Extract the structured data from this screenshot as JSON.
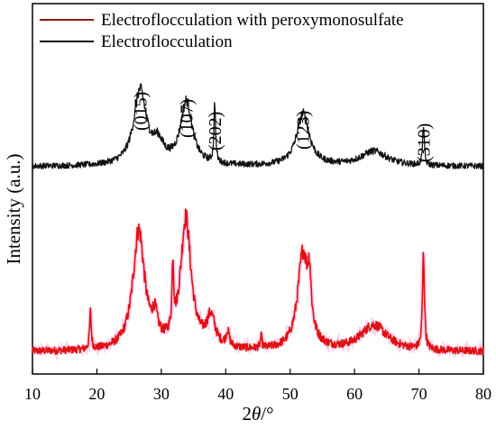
{
  "chart_data": {
    "type": "line",
    "title": "",
    "xlabel": "2θ/°",
    "xlabel_parts": {
      "prefix": "2",
      "symbol": "θ",
      "suffix": "/°"
    },
    "ylabel": "Intensity (a.u.)",
    "xlim": [
      10,
      80
    ],
    "xticks": [
      10,
      20,
      30,
      40,
      50,
      60,
      70,
      80
    ],
    "ylim": [
      0,
      100
    ],
    "y_scale": "arbitrary units, curves vertically offset",
    "grid": false,
    "legend": {
      "placement": "top-left",
      "frame": false
    },
    "peak_labels": [
      {
        "text": "(015)",
        "x": 26.7
      },
      {
        "text": "(107)",
        "x": 33.9
      },
      {
        "text": "(202)",
        "x": 38.3
      },
      {
        "text": "(123)",
        "x": 51.9
      },
      {
        "text": "(310)",
        "x": 70.7
      }
    ],
    "series": [
      {
        "name": "Electroflocculation with peroxymonosulfate",
        "color": "#e01010",
        "line_color": "#8b1a1a",
        "baseline": 6,
        "noise": 1.0,
        "peaks": [
          {
            "x": 19.0,
            "h": 10,
            "w": 0.15
          },
          {
            "x": 26.5,
            "h": 32,
            "w": 1.1
          },
          {
            "x": 29.0,
            "h": 6,
            "w": 0.5
          },
          {
            "x": 31.8,
            "h": 18,
            "w": 0.15
          },
          {
            "x": 33.8,
            "h": 35,
            "w": 1.0
          },
          {
            "x": 37.7,
            "h": 8,
            "w": 0.8
          },
          {
            "x": 40.3,
            "h": 4,
            "w": 0.3
          },
          {
            "x": 45.5,
            "h": 3,
            "w": 0.15
          },
          {
            "x": 52.0,
            "h": 26,
            "w": 1.0
          },
          {
            "x": 53.0,
            "h": 12,
            "w": 0.3
          },
          {
            "x": 63.0,
            "h": 7,
            "w": 2.5
          },
          {
            "x": 70.7,
            "h": 26,
            "w": 0.18
          }
        ]
      },
      {
        "name": "Electroflocculation",
        "color": "#111111",
        "line_color": "#000000",
        "baseline": 56,
        "noise": 0.8,
        "peaks": [
          {
            "x": 26.7,
            "h": 20,
            "w": 1.2
          },
          {
            "x": 29.5,
            "h": 5,
            "w": 1.0
          },
          {
            "x": 33.9,
            "h": 17,
            "w": 1.1
          },
          {
            "x": 38.3,
            "h": 16,
            "w": 0.15
          },
          {
            "x": 52.0,
            "h": 14,
            "w": 1.2
          },
          {
            "x": 63.0,
            "h": 4,
            "w": 2.5
          },
          {
            "x": 70.7,
            "h": 11,
            "w": 0.15
          }
        ]
      }
    ]
  }
}
